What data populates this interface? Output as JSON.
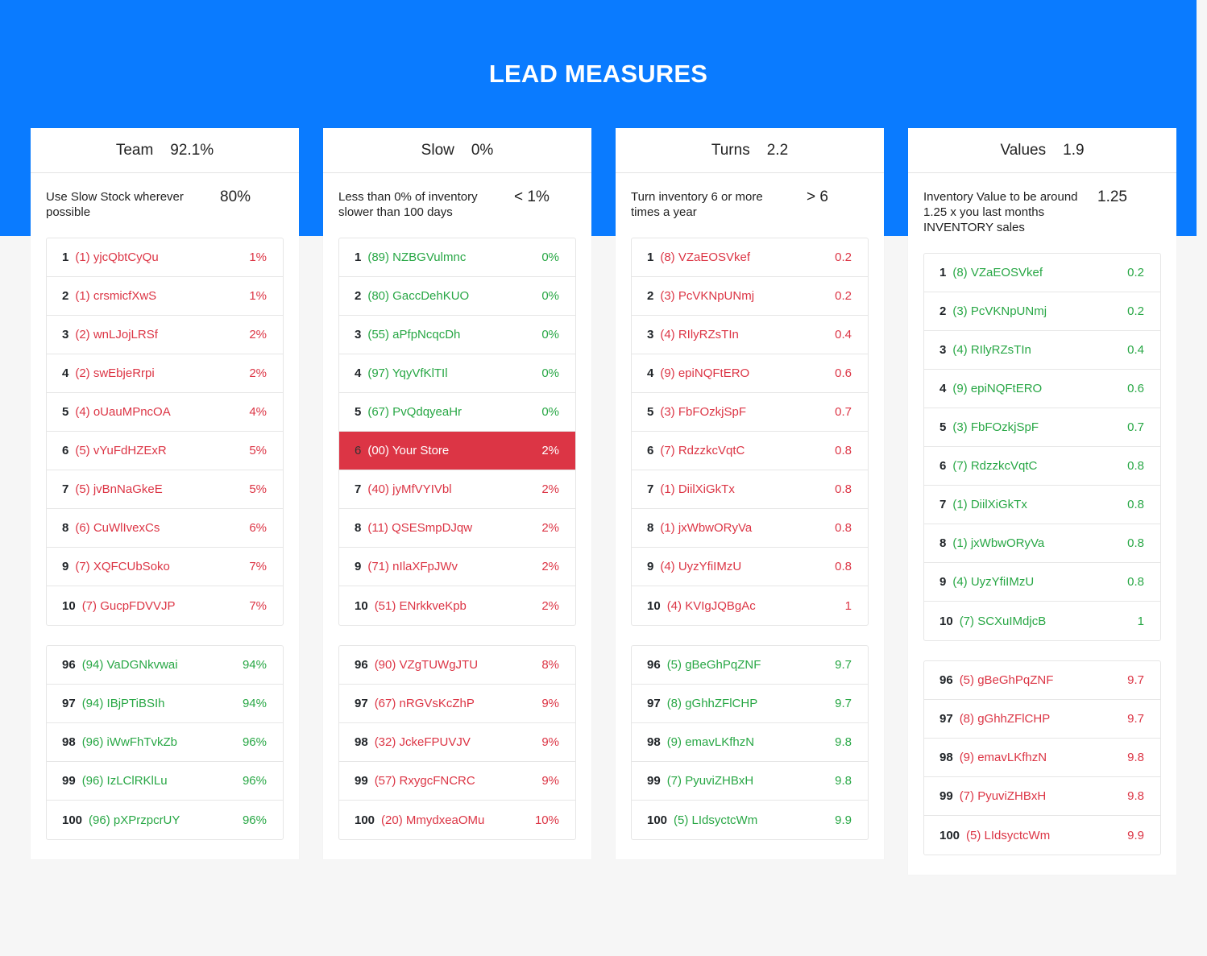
{
  "page": {
    "title": "LEAD MEASURES"
  },
  "cards": [
    {
      "title": "Team",
      "value": "92.1%",
      "description": "Use Slow Stock wherever possible",
      "target": "80%",
      "top": [
        {
          "rank": "1",
          "name": "(1) yjcQbtCyQu",
          "value": "1%",
          "status": "red"
        },
        {
          "rank": "2",
          "name": "(1) crsmicfXwS",
          "value": "1%",
          "status": "red"
        },
        {
          "rank": "3",
          "name": "(2) wnLJojLRSf",
          "value": "2%",
          "status": "red"
        },
        {
          "rank": "4",
          "name": "(2) swEbjeRrpi",
          "value": "2%",
          "status": "red"
        },
        {
          "rank": "5",
          "name": "(4) oUauMPncOA",
          "value": "4%",
          "status": "red"
        },
        {
          "rank": "6",
          "name": "(5) vYuFdHZExR",
          "value": "5%",
          "status": "red"
        },
        {
          "rank": "7",
          "name": "(5) jvBnNaGkeE",
          "value": "5%",
          "status": "red"
        },
        {
          "rank": "8",
          "name": "(6) CuWlIvexCs",
          "value": "6%",
          "status": "red"
        },
        {
          "rank": "9",
          "name": "(7) XQFCUbSoko",
          "value": "7%",
          "status": "red"
        },
        {
          "rank": "10",
          "name": "(7) GucpFDVVJP",
          "value": "7%",
          "status": "red"
        }
      ],
      "bottom": [
        {
          "rank": "96",
          "name": "(94) VaDGNkvwai",
          "value": "94%",
          "status": "green"
        },
        {
          "rank": "97",
          "name": "(94) IBjPTiBSIh",
          "value": "94%",
          "status": "green"
        },
        {
          "rank": "98",
          "name": "(96) iWwFhTvkZb",
          "value": "96%",
          "status": "green"
        },
        {
          "rank": "99",
          "name": "(96) IzLClRKlLu",
          "value": "96%",
          "status": "green"
        },
        {
          "rank": "100",
          "name": "(96) pXPrzpcrUY",
          "value": "96%",
          "status": "green"
        }
      ]
    },
    {
      "title": "Slow",
      "value": "0%",
      "description": "Less than 0% of inventory slower than 100 days",
      "target": "< 1%",
      "top": [
        {
          "rank": "1",
          "name": "(89) NZBGVulmnc",
          "value": "0%",
          "status": "green"
        },
        {
          "rank": "2",
          "name": "(80) GaccDehKUO",
          "value": "0%",
          "status": "green"
        },
        {
          "rank": "3",
          "name": "(55) aPfpNcqcDh",
          "value": "0%",
          "status": "green"
        },
        {
          "rank": "4",
          "name": "(97) YqyVfKlTIl",
          "value": "0%",
          "status": "green"
        },
        {
          "rank": "5",
          "name": "(67) PvQdqyeaHr",
          "value": "0%",
          "status": "green"
        },
        {
          "rank": "6",
          "name": "(00) Your Store",
          "value": "2%",
          "status": "highlight"
        },
        {
          "rank": "7",
          "name": "(40) jyMfVYIVbl",
          "value": "2%",
          "status": "red"
        },
        {
          "rank": "8",
          "name": "(11) QSESmpDJqw",
          "value": "2%",
          "status": "red"
        },
        {
          "rank": "9",
          "name": "(71) nIlaXFpJWv",
          "value": "2%",
          "status": "red"
        },
        {
          "rank": "10",
          "name": "(51) ENrkkveKpb",
          "value": "2%",
          "status": "red"
        }
      ],
      "bottom": [
        {
          "rank": "96",
          "name": "(90) VZgTUWgJTU",
          "value": "8%",
          "status": "red"
        },
        {
          "rank": "97",
          "name": "(67) nRGVsKcZhP",
          "value": "9%",
          "status": "red"
        },
        {
          "rank": "98",
          "name": "(32) JckeFPUVJV",
          "value": "9%",
          "status": "red"
        },
        {
          "rank": "99",
          "name": "(57) RxygcFNCRC",
          "value": "9%",
          "status": "red"
        },
        {
          "rank": "100",
          "name": "(20) MmydxeaOMu",
          "value": "10%",
          "status": "red"
        }
      ]
    },
    {
      "title": "Turns",
      "value": "2.2",
      "description": "Turn inventory 6 or more times a year",
      "target": "> 6",
      "top": [
        {
          "rank": "1",
          "name": "(8) VZaEOSVkef",
          "value": "0.2",
          "status": "red"
        },
        {
          "rank": "2",
          "name": "(3) PcVKNpUNmj",
          "value": "0.2",
          "status": "red"
        },
        {
          "rank": "3",
          "name": "(4) RIlyRZsTIn",
          "value": "0.4",
          "status": "red"
        },
        {
          "rank": "4",
          "name": "(9) epiNQFtERO",
          "value": "0.6",
          "status": "red"
        },
        {
          "rank": "5",
          "name": "(3) FbFOzkjSpF",
          "value": "0.7",
          "status": "red"
        },
        {
          "rank": "6",
          "name": "(7) RdzzkcVqtC",
          "value": "0.8",
          "status": "red"
        },
        {
          "rank": "7",
          "name": "(1) DiilXiGkTx",
          "value": "0.8",
          "status": "red"
        },
        {
          "rank": "8",
          "name": "(1) jxWbwORyVa",
          "value": "0.8",
          "status": "red"
        },
        {
          "rank": "9",
          "name": "(4) UyzYfiIMzU",
          "value": "0.8",
          "status": "red"
        },
        {
          "rank": "10",
          "name": "(4) KVIgJQBgAc",
          "value": "1",
          "status": "red"
        }
      ],
      "bottom": [
        {
          "rank": "96",
          "name": "(5) gBeGhPqZNF",
          "value": "9.7",
          "status": "green"
        },
        {
          "rank": "97",
          "name": "(8) gGhhZFlCHP",
          "value": "9.7",
          "status": "green"
        },
        {
          "rank": "98",
          "name": "(9) emavLKfhzN",
          "value": "9.8",
          "status": "green"
        },
        {
          "rank": "99",
          "name": "(7) PyuviZHBxH",
          "value": "9.8",
          "status": "green"
        },
        {
          "rank": "100",
          "name": "(5) LIdsyctcWm",
          "value": "9.9",
          "status": "green"
        }
      ]
    },
    {
      "title": "Values",
      "value": "1.9",
      "description": "Inventory Value to be around 1.25 x you last months INVENTORY sales",
      "target": "1.25",
      "top": [
        {
          "rank": "1",
          "name": "(8) VZaEOSVkef",
          "value": "0.2",
          "status": "green"
        },
        {
          "rank": "2",
          "name": "(3) PcVKNpUNmj",
          "value": "0.2",
          "status": "green"
        },
        {
          "rank": "3",
          "name": "(4) RIlyRZsTIn",
          "value": "0.4",
          "status": "green"
        },
        {
          "rank": "4",
          "name": "(9) epiNQFtERO",
          "value": "0.6",
          "status": "green"
        },
        {
          "rank": "5",
          "name": "(3) FbFOzkjSpF",
          "value": "0.7",
          "status": "green"
        },
        {
          "rank": "6",
          "name": "(7) RdzzkcVqtC",
          "value": "0.8",
          "status": "green"
        },
        {
          "rank": "7",
          "name": "(1) DiilXiGkTx",
          "value": "0.8",
          "status": "green"
        },
        {
          "rank": "8",
          "name": "(1) jxWbwORyVa",
          "value": "0.8",
          "status": "green"
        },
        {
          "rank": "9",
          "name": "(4) UyzYfiIMzU",
          "value": "0.8",
          "status": "green"
        },
        {
          "rank": "10",
          "name": "(7) SCXuIMdjcB",
          "value": "1",
          "status": "green"
        }
      ],
      "bottom": [
        {
          "rank": "96",
          "name": "(5) gBeGhPqZNF",
          "value": "9.7",
          "status": "red"
        },
        {
          "rank": "97",
          "name": "(8) gGhhZFlCHP",
          "value": "9.7",
          "status": "red"
        },
        {
          "rank": "98",
          "name": "(9) emavLKfhzN",
          "value": "9.8",
          "status": "red"
        },
        {
          "rank": "99",
          "name": "(7) PyuviZHBxH",
          "value": "9.8",
          "status": "red"
        },
        {
          "rank": "100",
          "name": "(5) LIdsyctcWm",
          "value": "9.9",
          "status": "red"
        }
      ]
    }
  ],
  "colors": {
    "banner": "#0a7bff",
    "red": "#dc3545",
    "green": "#28a745"
  }
}
